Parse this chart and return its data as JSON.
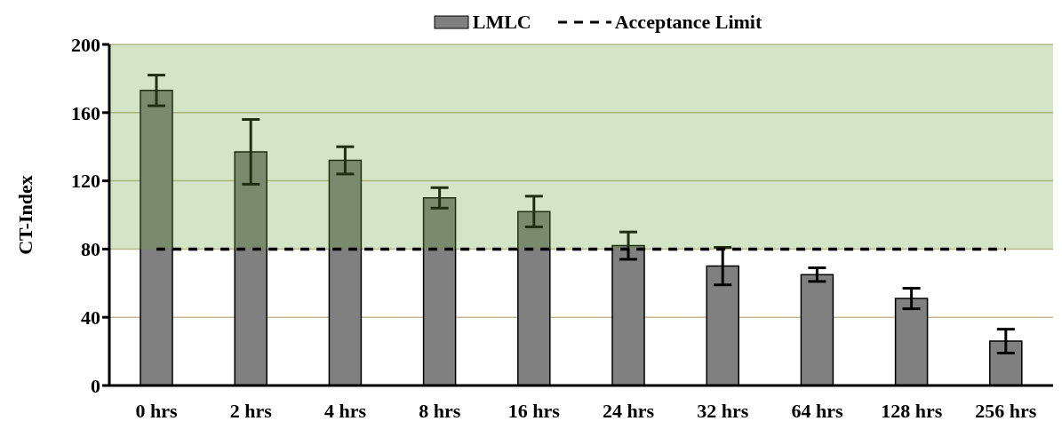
{
  "chart_data": {
    "type": "bar",
    "ylabel": "CT-Index",
    "categories": [
      "0 hrs",
      "2 hrs",
      "4 hrs",
      "8 hrs",
      "16 hrs",
      "24 hrs",
      "32 hrs",
      "64 hrs",
      "128 hrs",
      "256 hrs"
    ],
    "series": [
      {
        "name": "LMLC",
        "color": "#808080",
        "values": [
          173,
          137,
          132,
          110,
          102,
          82,
          70,
          65,
          51,
          26
        ],
        "errors": [
          9,
          19,
          8,
          6,
          9,
          8,
          11,
          4,
          6,
          7
        ]
      }
    ],
    "ylim": [
      0,
      200
    ],
    "yticks": [
      0,
      40,
      80,
      120,
      160,
      200
    ],
    "grid": "y",
    "legend": "top",
    "ref_lines": [
      {
        "axis": "y",
        "value": 80,
        "label": "Acceptance Limit",
        "color": "#000000",
        "line_style": "dashed"
      }
    ],
    "bands": [
      {
        "axis": "y",
        "from": 80,
        "to": 200,
        "color": "#6ba23b"
      }
    ]
  }
}
